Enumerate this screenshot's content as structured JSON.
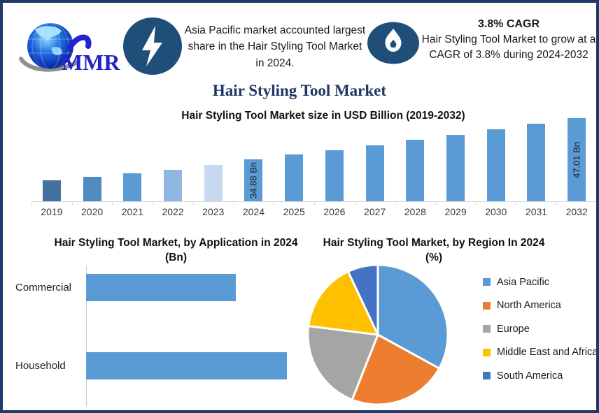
{
  "brand": {
    "name": "MMR"
  },
  "page_title": "Hair Styling Tool Market",
  "highlights": {
    "left": {
      "icon": "lightning-icon",
      "text": "Asia Pacific market accounted largest share in the Hair Styling Tool Market in 2024."
    },
    "right": {
      "icon": "flame-icon",
      "heading": "3.8% CAGR",
      "text": "Hair Styling Tool Market to grow at a CAGR of 3.8% during 2024-2032"
    }
  },
  "colors": {
    "navy_border": "#1e3a67",
    "badge_blue": "#1f4e79",
    "bar_blue": "#5b9bd5",
    "axis_gray": "#d9d9d9"
  },
  "chart_data": [
    {
      "type": "bar",
      "title": "Hair Styling Tool Market size in USD Billion (2019-2032)",
      "categories": [
        "2019",
        "2020",
        "2021",
        "2022",
        "2023",
        "2024",
        "2025",
        "2026",
        "2027",
        "2028",
        "2029",
        "2030",
        "2031",
        "2032"
      ],
      "values": [
        28.6,
        29.6,
        30.7,
        31.8,
        33.2,
        34.88,
        36.2,
        37.6,
        39.0,
        40.5,
        42.1,
        43.6,
        45.3,
        47.01
      ],
      "data_labels": {
        "2024": "34.88 Bn",
        "2032": "47.01 Bn"
      },
      "bar_colors": {
        "2019": "#44729e",
        "2020": "#4f8ac1",
        "2022": "#90b7e2",
        "2023": "#c6d9f1",
        "default": "#5b9bd5"
      },
      "ylim": [
        22.5,
        48
      ],
      "ylabel": "USD Billion",
      "grid": false,
      "legend": false
    },
    {
      "type": "bar-horizontal",
      "title": "Hair Styling Tool Market, by Application in 2024 (Bn)",
      "categories": [
        "Commercial",
        "Household"
      ],
      "values": [
        14.9,
        20.0
      ],
      "xlim": [
        0,
        20
      ],
      "bar_color": "#5b9bd5",
      "grid": false,
      "legend": false
    },
    {
      "type": "pie",
      "title": "Hair Styling Tool Market, by Region In 2024 (%)",
      "labels": [
        "Asia Pacific",
        "North America",
        "Europe",
        "Middle East and Africa",
        "South America"
      ],
      "values": [
        33,
        23,
        21,
        16,
        7
      ],
      "colors": [
        "#5b9bd5",
        "#ed7d31",
        "#a5a5a5",
        "#ffc000",
        "#4472c4"
      ],
      "legend_position": "right",
      "start_angle_deg": 0
    }
  ]
}
